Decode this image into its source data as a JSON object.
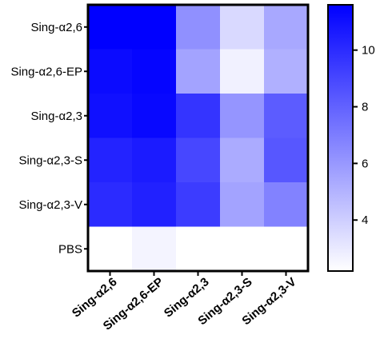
{
  "chart_data": {
    "type": "heatmap",
    "rows": [
      "Sing-α2,6",
      "Sing-α2,6-EP",
      "Sing-α2,3",
      "Sing-α2,3-S",
      "Sing-α2,3-V",
      "PBS"
    ],
    "columns": [
      "Sing-α2,6",
      "Sing-α2,6-EP",
      "Sing-α2,3",
      "Sing-α2,3-S",
      "Sing-α2,3-V"
    ],
    "values": [
      [
        11.6,
        11.6,
        6.3,
        3.6,
        5.4
      ],
      [
        11.2,
        11.4,
        5.6,
        2.7,
        5.1
      ],
      [
        11.0,
        11.3,
        9.7,
        6.1,
        8.2
      ],
      [
        10.3,
        10.6,
        9.0,
        5.3,
        8.4
      ],
      [
        10.0,
        10.4,
        9.4,
        5.6,
        6.8
      ],
      [
        2.2,
        2.6,
        2.2,
        2.2,
        2.2
      ]
    ],
    "colorbar": {
      "ticks": [
        4,
        6,
        8,
        10
      ],
      "range": [
        2.2,
        11.6
      ],
      "low_color": "#ffffff",
      "high_color": "#0000ff"
    }
  }
}
